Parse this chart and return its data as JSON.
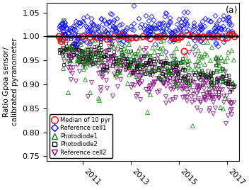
{
  "title": "",
  "xlabel": "",
  "ylabel": "Ratio Gpoa sensor/\ncalibrated pyranometer",
  "xlim": [
    2009.5,
    2017.5
  ],
  "ylim": [
    0.74,
    1.07
  ],
  "yticks": [
    0.75,
    0.8,
    0.85,
    0.9,
    0.95,
    1.0,
    1.05
  ],
  "xticks": [
    2011,
    2013,
    2015,
    2017
  ],
  "hline_y": 1.0,
  "hline_color": "black",
  "hline_lw": 1.8,
  "annotation": "(a)",
  "legend_entries": [
    {
      "label": "Median of 10 pyr",
      "color": "red",
      "marker": "o",
      "markersize": 7
    },
    {
      "label": "Reference cell1",
      "color": "blue",
      "marker": "D",
      "markersize": 5
    },
    {
      "label": "Photodiode1",
      "color": "green",
      "marker": "^",
      "markersize": 6
    },
    {
      "label": "Photodiode2",
      "color": "black",
      "marker": "s",
      "markersize": 5
    },
    {
      "label": "Reference cell2",
      "color": "purple",
      "marker": "v",
      "markersize": 6
    }
  ],
  "background_color": "white",
  "xlabel_rotation": -45
}
